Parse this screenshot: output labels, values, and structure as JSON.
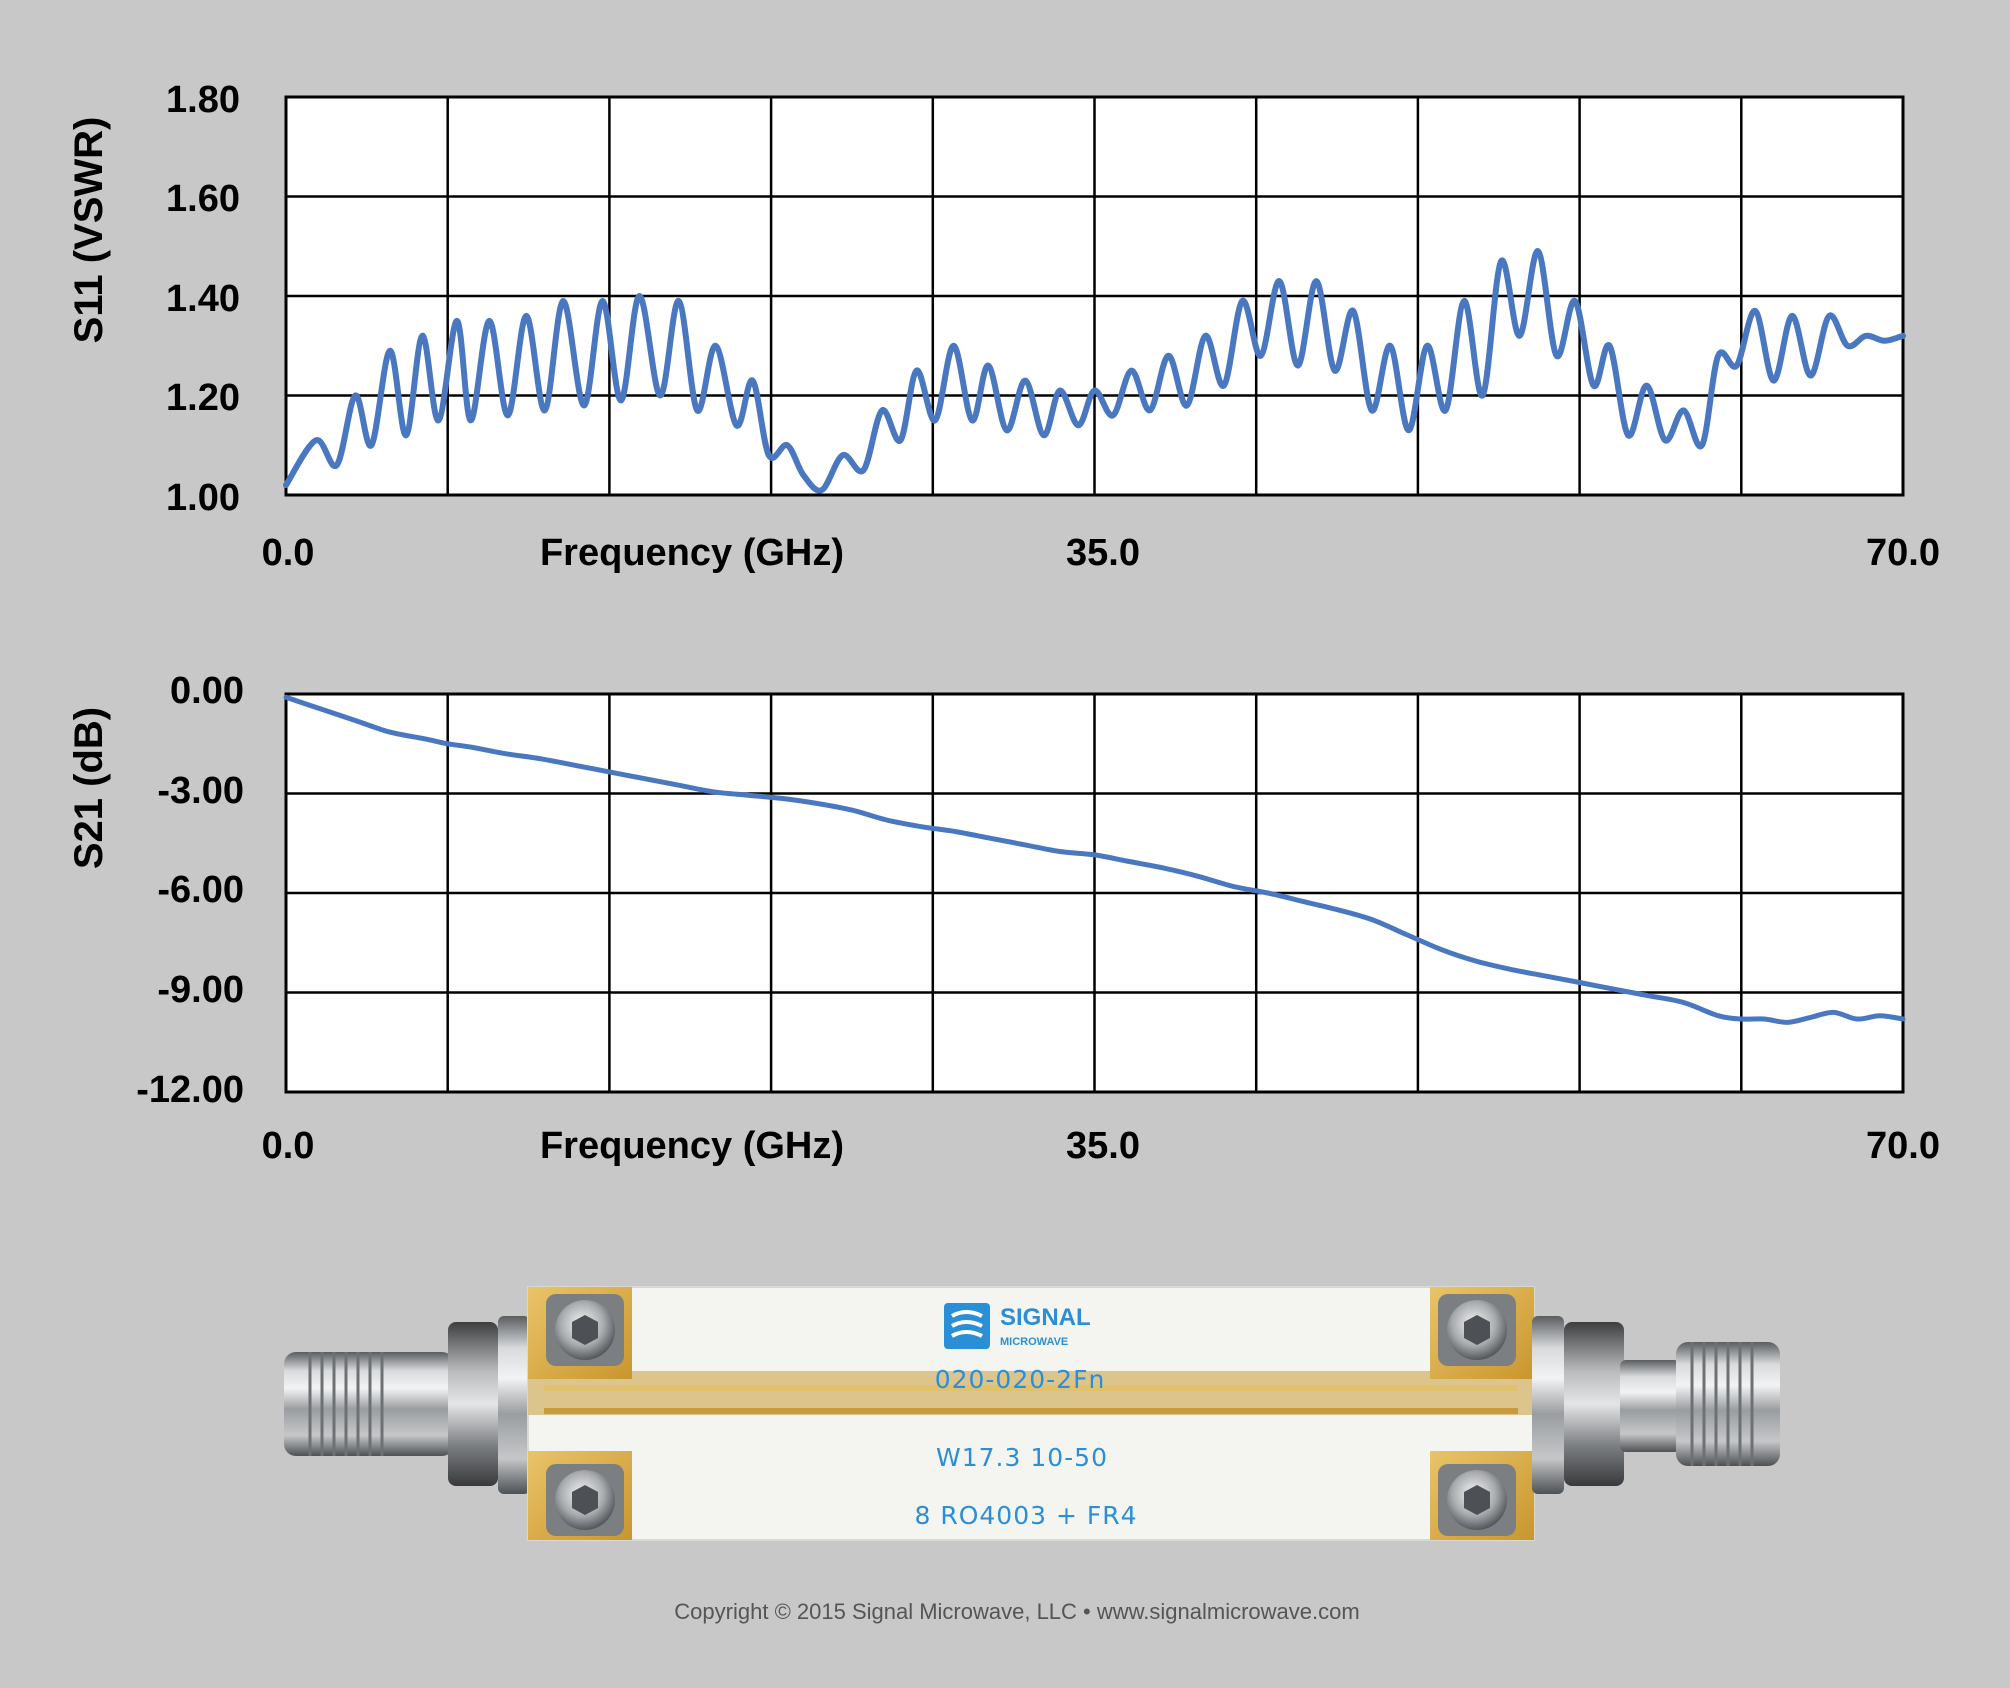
{
  "colors": {
    "background": "#c8c8c8",
    "series": "#4a78c0",
    "grid": "#000000",
    "pcb_print": "#2a8fd6"
  },
  "chart_data": [
    {
      "type": "line",
      "ylabel": "S11 (VSWR)",
      "xlabel": "Frequency (GHz)",
      "xlim": [
        0,
        70
      ],
      "ylim": [
        1.0,
        1.8
      ],
      "xticks": [
        "0.0",
        "35.0",
        "70.0"
      ],
      "yticks": [
        "1.80",
        "1.60",
        "1.40",
        "1.20",
        "1.00"
      ],
      "grid": true,
      "series": [
        {
          "x": [
            0.0,
            1.3,
            2.2,
            3.0,
            3.7,
            4.5,
            5.2,
            5.9,
            6.6,
            7.4,
            8.0,
            8.8,
            9.6,
            10.4,
            11.2,
            12.0,
            12.9,
            13.7,
            14.5,
            15.3,
            16.2,
            17.0,
            17.8,
            18.6,
            19.5,
            20.2,
            20.9,
            21.7,
            22.4,
            23.2,
            24.1,
            25.0,
            25.8,
            26.6,
            27.3,
            28.1,
            28.9,
            29.7,
            30.4,
            31.2,
            32.0,
            32.8,
            33.5,
            34.3,
            35.0,
            35.8,
            36.6,
            37.4,
            38.2,
            39.0,
            39.8,
            40.6,
            41.4,
            42.2,
            43.0,
            43.8,
            44.6,
            45.4,
            46.2,
            47.0,
            47.8,
            48.6,
            49.4,
            50.2,
            51.0,
            51.8,
            52.6,
            53.4,
            54.2,
            55.0,
            55.8,
            56.6,
            57.3,
            58.1,
            58.9,
            59.7,
            60.5,
            61.3,
            62.0,
            62.8,
            63.6,
            64.4,
            65.2,
            66.0,
            66.8,
            67.6,
            68.4,
            69.2,
            70.0
          ],
          "values": [
            1.02,
            1.11,
            1.06,
            1.2,
            1.1,
            1.29,
            1.12,
            1.32,
            1.15,
            1.35,
            1.15,
            1.35,
            1.16,
            1.36,
            1.17,
            1.39,
            1.18,
            1.39,
            1.19,
            1.4,
            1.2,
            1.39,
            1.17,
            1.3,
            1.14,
            1.23,
            1.08,
            1.1,
            1.04,
            1.01,
            1.08,
            1.05,
            1.17,
            1.11,
            1.25,
            1.15,
            1.3,
            1.15,
            1.26,
            1.13,
            1.23,
            1.12,
            1.21,
            1.14,
            1.21,
            1.16,
            1.25,
            1.17,
            1.28,
            1.18,
            1.32,
            1.22,
            1.39,
            1.28,
            1.43,
            1.26,
            1.43,
            1.25,
            1.37,
            1.17,
            1.3,
            1.13,
            1.3,
            1.17,
            1.39,
            1.2,
            1.47,
            1.32,
            1.49,
            1.28,
            1.39,
            1.22,
            1.3,
            1.12,
            1.22,
            1.11,
            1.17,
            1.1,
            1.28,
            1.26,
            1.37,
            1.23,
            1.36,
            1.24,
            1.36,
            1.3,
            1.32,
            1.31,
            1.32
          ]
        }
      ]
    },
    {
      "type": "line",
      "ylabel": "S21 (dB)",
      "xlabel": "Frequency (GHz)",
      "xlim": [
        0,
        70
      ],
      "ylim": [
        -12.0,
        0.0
      ],
      "xticks": [
        "0.0",
        "35.0",
        "70.0"
      ],
      "yticks": [
        "0.00",
        "-3.00",
        "-6.00",
        "-9.00",
        "-12.00"
      ],
      "grid": true,
      "series": [
        {
          "x": [
            0,
            1.5,
            3,
            4.5,
            6,
            7,
            8,
            9.5,
            11,
            12.5,
            14,
            15.5,
            17,
            18.5,
            20,
            21.5,
            23,
            24.5,
            26,
            27.5,
            29,
            30.5,
            32,
            33.5,
            35,
            36.5,
            38,
            39.5,
            41,
            42.5,
            44,
            45.5,
            47,
            48.5,
            50,
            51.5,
            53,
            54.5,
            56,
            57.5,
            59,
            60.5,
            62,
            63,
            64,
            65,
            66,
            67,
            68,
            69,
            70
          ],
          "values": [
            -0.1,
            -0.45,
            -0.8,
            -1.15,
            -1.35,
            -1.5,
            -1.6,
            -1.8,
            -1.95,
            -2.15,
            -2.35,
            -2.55,
            -2.75,
            -2.95,
            -3.05,
            -3.15,
            -3.3,
            -3.5,
            -3.8,
            -4.0,
            -4.15,
            -4.35,
            -4.55,
            -4.75,
            -4.85,
            -5.05,
            -5.25,
            -5.5,
            -5.8,
            -6.0,
            -6.25,
            -6.5,
            -6.8,
            -7.25,
            -7.7,
            -8.05,
            -8.3,
            -8.5,
            -8.7,
            -8.9,
            -9.1,
            -9.3,
            -9.7,
            -9.8,
            -9.8,
            -9.9,
            -9.75,
            -9.6,
            -9.8,
            -9.7,
            -9.8
          ]
        }
      ]
    }
  ],
  "product": {
    "logo_line1": "SIGNAL",
    "logo_line2": "MICROWAVE",
    "label_1": "020-020-2Fn",
    "label_2": "W17.3 10-50",
    "label_3": "8 RO4003 + FR4"
  },
  "copyright": "Copyright © 2015 Signal Microwave, LLC • www.signalmicrowave.com"
}
